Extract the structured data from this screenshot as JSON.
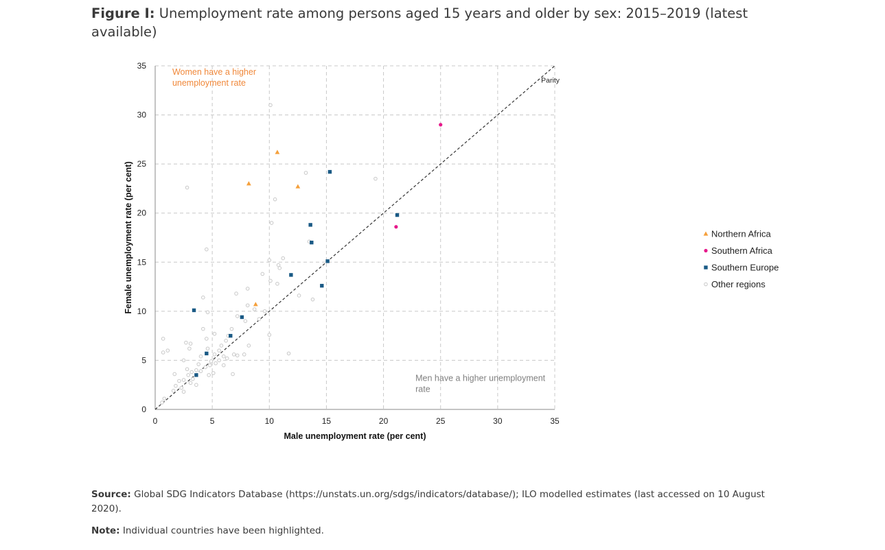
{
  "figure": {
    "title_prefix": "Figure I:",
    "title": "Unemployment rate among persons aged 15 years and older by sex: 2015–2019 (latest available)"
  },
  "footer": {
    "source_label": "Source:",
    "source_text": "Global SDG Indicators Database (https://unstats.un.org/sdgs/indicators/database/); ILO modelled estimates (last accessed on 10 August 2020).",
    "note_label": "Note:",
    "note_text": "Individual countries have been highlighted."
  },
  "chart_data": {
    "type": "scatter",
    "title": "",
    "xlabel": "Male unemployment rate (per cent)",
    "ylabel": "Female unemployment rate (per cent)",
    "xlim": [
      0,
      35
    ],
    "ylim": [
      0,
      35
    ],
    "xticks": [
      0,
      5,
      10,
      15,
      20,
      25,
      30,
      35
    ],
    "yticks": [
      0,
      5,
      10,
      15,
      20,
      25,
      30,
      35
    ],
    "grid": true,
    "legend_position": "right",
    "parity_line": {
      "label": "Parity",
      "from": [
        0,
        0
      ],
      "to": [
        35,
        35
      ]
    },
    "annotations": [
      {
        "text_lines": [
          "Women have a higher",
          "unemployment rate"
        ],
        "color": "#f0883a",
        "x": 1.5,
        "y": 34.1
      },
      {
        "text_lines": [
          "Men have a higher unemployment",
          "rate"
        ],
        "color": "#808080",
        "x": 22.8,
        "y": 2.9
      }
    ],
    "series": [
      {
        "name": "Northern Africa",
        "marker": "triangle",
        "color": "#f5a03c",
        "points": [
          [
            10.7,
            26.2
          ],
          [
            8.2,
            23.0
          ],
          [
            12.5,
            22.7
          ],
          [
            8.8,
            10.7
          ]
        ]
      },
      {
        "name": "Southern Africa",
        "marker": "circle",
        "color": "#e6198b",
        "points": [
          [
            25.0,
            29.0
          ],
          [
            21.1,
            18.6
          ]
        ]
      },
      {
        "name": "Southern Europe",
        "marker": "square",
        "color": "#1a5a85",
        "points": [
          [
            15.3,
            24.2
          ],
          [
            21.2,
            19.8
          ],
          [
            13.6,
            18.8
          ],
          [
            13.7,
            17.0
          ],
          [
            15.1,
            15.1
          ],
          [
            11.9,
            13.7
          ],
          [
            14.6,
            12.6
          ],
          [
            3.4,
            10.1
          ],
          [
            7.6,
            9.4
          ],
          [
            6.6,
            7.5
          ],
          [
            4.5,
            5.7
          ],
          [
            3.6,
            3.5
          ]
        ]
      },
      {
        "name": "Other regions",
        "marker": "open-circle",
        "color": "#c8c8c8",
        "points": [
          [
            10.1,
            31.0
          ],
          [
            2.8,
            22.6
          ],
          [
            19.3,
            23.5
          ],
          [
            13.2,
            24.1
          ],
          [
            10.5,
            21.4
          ],
          [
            10.2,
            19.0
          ],
          [
            13.5,
            17.1
          ],
          [
            4.5,
            16.3
          ],
          [
            11.2,
            15.4
          ],
          [
            10.8,
            14.7
          ],
          [
            10.9,
            14.4
          ],
          [
            10.0,
            15.2
          ],
          [
            9.4,
            13.8
          ],
          [
            10.1,
            13.1
          ],
          [
            10.7,
            12.8
          ],
          [
            8.1,
            12.3
          ],
          [
            7.1,
            11.8
          ],
          [
            12.6,
            11.6
          ],
          [
            13.8,
            11.2
          ],
          [
            4.2,
            11.4
          ],
          [
            8.1,
            10.6
          ],
          [
            8.7,
            10.2
          ],
          [
            9.6,
            10.0
          ],
          [
            4.6,
            9.9
          ],
          [
            7.2,
            9.5
          ],
          [
            7.9,
            9.0
          ],
          [
            9.1,
            9.2
          ],
          [
            6.7,
            8.2
          ],
          [
            4.2,
            8.2
          ],
          [
            10.0,
            7.6
          ],
          [
            5.2,
            7.7
          ],
          [
            6.4,
            7.5
          ],
          [
            4.5,
            7.2
          ],
          [
            6.2,
            7.0
          ],
          [
            0.7,
            7.2
          ],
          [
            2.7,
            6.8
          ],
          [
            3.1,
            6.7
          ],
          [
            5.8,
            6.5
          ],
          [
            8.2,
            6.5
          ],
          [
            4.6,
            6.2
          ],
          [
            3.0,
            6.2
          ],
          [
            5.6,
            6.0
          ],
          [
            1.1,
            6.0
          ],
          [
            0.7,
            5.8
          ],
          [
            11.7,
            5.7
          ],
          [
            7.8,
            5.6
          ],
          [
            6.9,
            5.6
          ],
          [
            7.2,
            5.5
          ],
          [
            6.0,
            5.4
          ],
          [
            5.2,
            5.6
          ],
          [
            4.0,
            5.4
          ],
          [
            6.3,
            5.2
          ],
          [
            5.6,
            5.0
          ],
          [
            2.5,
            5.0
          ],
          [
            4.9,
            4.9
          ],
          [
            5.3,
            4.7
          ],
          [
            3.8,
            4.6
          ],
          [
            6.0,
            4.5
          ],
          [
            4.8,
            4.5
          ],
          [
            4.4,
            4.3
          ],
          [
            2.8,
            4.1
          ],
          [
            3.6,
            4.0
          ],
          [
            4.0,
            3.9
          ],
          [
            3.2,
            3.8
          ],
          [
            5.1,
            3.7
          ],
          [
            6.8,
            3.6
          ],
          [
            4.7,
            3.5
          ],
          [
            2.9,
            3.5
          ],
          [
            3.3,
            3.1
          ],
          [
            2.5,
            3.0
          ],
          [
            1.7,
            3.6
          ],
          [
            2.1,
            2.9
          ],
          [
            3.1,
            2.7
          ],
          [
            3.6,
            2.5
          ],
          [
            1.8,
            2.4
          ],
          [
            2.3,
            2.2
          ],
          [
            2.5,
            1.8
          ],
          [
            1.6,
            1.9
          ],
          [
            0.8,
            1.1
          ],
          [
            0.6,
            0.7
          ]
        ]
      }
    ]
  }
}
